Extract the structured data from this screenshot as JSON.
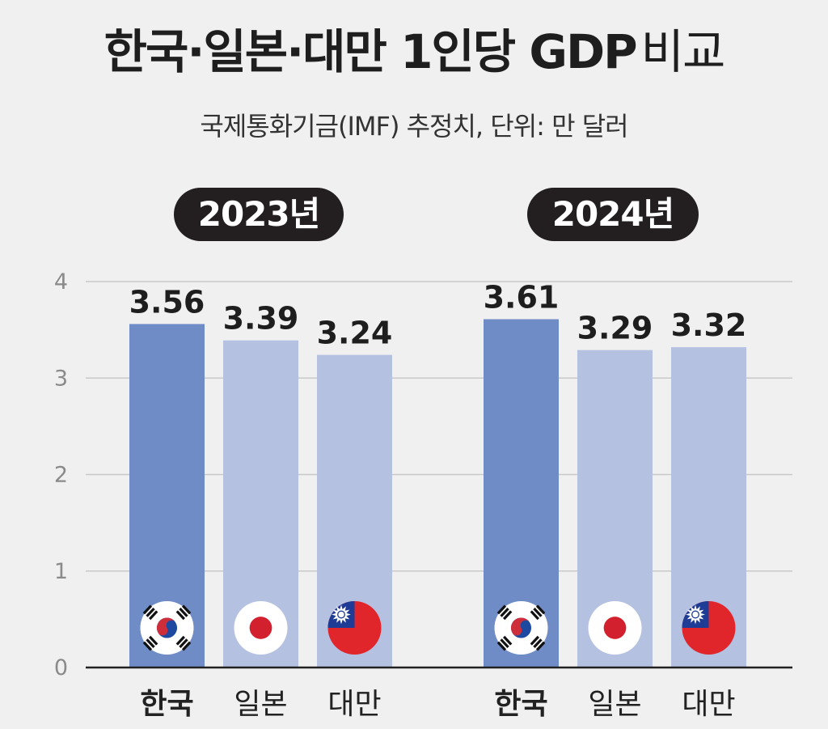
{
  "title": {
    "main": "한국·일본·대만 1인당 GDP",
    "suffix": "비교"
  },
  "subtitle": "국제통화기금(IMF) 추정치, 단위: 만 달러",
  "colors": {
    "korea_bar": "#6f8cc6",
    "other_bar": "#b4c1e0",
    "grid": "#c9c9c9",
    "axis": "#222222",
    "pill_bg": "#231f20"
  },
  "chart_data": {
    "type": "bar",
    "ylim": [
      0,
      4
    ],
    "yticks": [
      "0",
      "1",
      "2",
      "3",
      "4"
    ],
    "grid": true,
    "groups": [
      {
        "label": "2023년",
        "bars": [
          {
            "category": "한국",
            "value": 3.56,
            "value_label": "3.56",
            "highlight": true,
            "flag": "korea-flag"
          },
          {
            "category": "일본",
            "value": 3.39,
            "value_label": "3.39",
            "highlight": false,
            "flag": "japan-flag"
          },
          {
            "category": "대만",
            "value": 3.24,
            "value_label": "3.24",
            "highlight": false,
            "flag": "taiwan-flag"
          }
        ]
      },
      {
        "label": "2024년",
        "bars": [
          {
            "category": "한국",
            "value": 3.61,
            "value_label": "3.61",
            "highlight": true,
            "flag": "korea-flag"
          },
          {
            "category": "일본",
            "value": 3.29,
            "value_label": "3.29",
            "highlight": false,
            "flag": "japan-flag"
          },
          {
            "category": "대만",
            "value": 3.32,
            "value_label": "3.32",
            "highlight": false,
            "flag": "taiwan-flag"
          }
        ]
      }
    ]
  }
}
